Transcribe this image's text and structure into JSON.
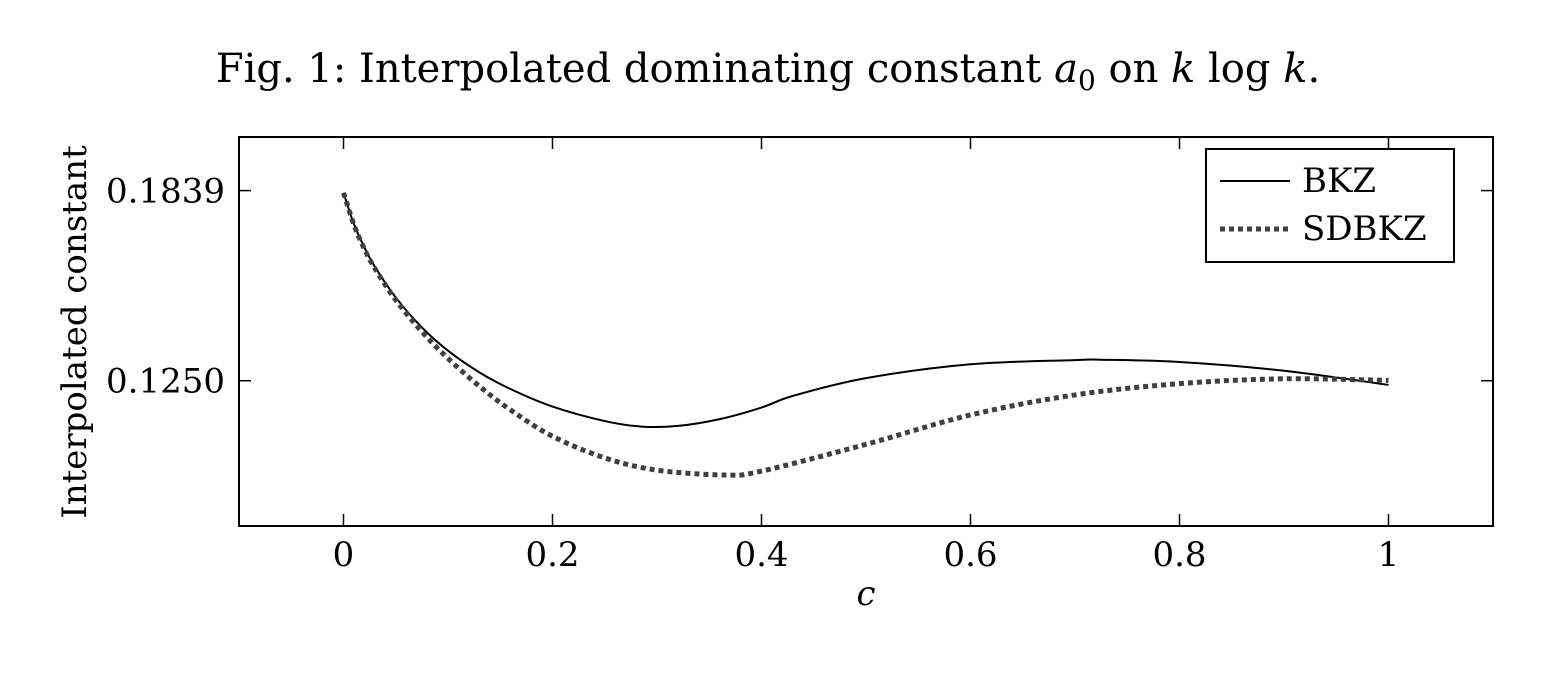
{
  "chart_data": {
    "type": "line",
    "title": {
      "prefix": "Fig. 1: Interpolated dominating constant ",
      "symbol_base": "a",
      "symbol_subscript": "0",
      "middle": " on ",
      "k1": "k",
      "log": " log ",
      "k2": "k",
      "suffix": "."
    },
    "xlabel": "c",
    "ylabel": "Interpolated constant",
    "xlim": [
      -0.1,
      1.1
    ],
    "ylim": [
      0.08,
      0.2005
    ],
    "xticks": [
      0,
      0.2,
      0.4,
      0.6,
      0.8,
      1
    ],
    "xtick_labels": [
      "0",
      "0.2",
      "0.4",
      "0.6",
      "0.8",
      "1"
    ],
    "yticks": [
      0.125,
      0.1839
    ],
    "ytick_labels": [
      "0.1250",
      "0.1839"
    ],
    "legend_position": "top-right",
    "grid": false,
    "series": [
      {
        "name": "BKZ",
        "style": "solid",
        "color": "#000000",
        "x": [
          0,
          0.01,
          0.02,
          0.03,
          0.05,
          0.075,
          0.1,
          0.13,
          0.16,
          0.2,
          0.25,
          0.285,
          0.32,
          0.36,
          0.4,
          0.43,
          0.5,
          0.6,
          0.7,
          0.725,
          0.8,
          0.9,
          1.0
        ],
        "y": [
          0.1832,
          0.1735,
          0.1663,
          0.1603,
          0.1508,
          0.1415,
          0.1343,
          0.1276,
          0.1224,
          0.117,
          0.1125,
          0.1108,
          0.111,
          0.1131,
          0.1167,
          0.1203,
          0.1258,
          0.1301,
          0.1314,
          0.1315,
          0.1308,
          0.1281,
          0.1237
        ]
      },
      {
        "name": "SDBKZ",
        "style": "dotted",
        "color": "#404040",
        "x": [
          0,
          0.01,
          0.02,
          0.03,
          0.05,
          0.075,
          0.1,
          0.13,
          0.16,
          0.2,
          0.25,
          0.3,
          0.365,
          0.4,
          0.5,
          0.6,
          0.7,
          0.8,
          0.9,
          1.0
        ],
        "y": [
          0.1832,
          0.1733,
          0.1658,
          0.1598,
          0.15,
          0.1402,
          0.1319,
          0.1233,
          0.1159,
          0.1078,
          0.1011,
          0.0973,
          0.0958,
          0.097,
          0.1053,
          0.1144,
          0.1206,
          0.1241,
          0.1256,
          0.1251
        ]
      }
    ]
  }
}
